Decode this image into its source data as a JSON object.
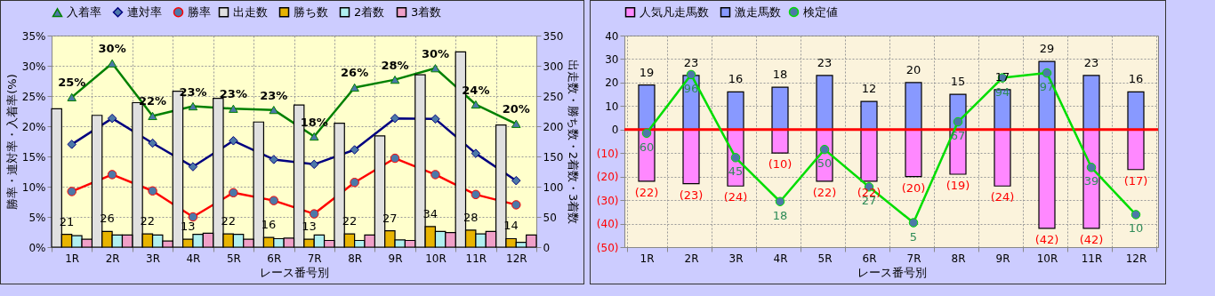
{
  "chart_data": [
    {
      "type": "bar",
      "xlabel": "レース番号別",
      "ylabel": "勝率・連対率・入着率(%)",
      "y2label": "出走数・勝ち数・2着数・3着数",
      "categories": [
        "1R",
        "2R",
        "3R",
        "4R",
        "5R",
        "6R",
        "7R",
        "8R",
        "9R",
        "10R",
        "11R",
        "12R"
      ],
      "series": [
        {
          "name": "出走数",
          "type": "bar",
          "axis": "y2",
          "color": "#e0e0e0",
          "values": [
            229,
            218,
            239,
            258,
            246,
            207,
            235,
            205,
            184,
            285,
            323,
            202
          ]
        },
        {
          "name": "勝ち数",
          "type": "bar",
          "axis": "y2",
          "color": "#e8b400",
          "values": [
            21,
            26,
            22,
            13,
            22,
            16,
            13,
            22,
            27,
            34,
            28,
            14
          ],
          "value_labels": [
            "21",
            "26",
            "22",
            "13",
            "22",
            "16",
            "13",
            "22",
            "27",
            "34",
            "28",
            "14"
          ]
        },
        {
          "name": "2着数",
          "type": "bar",
          "axis": "y2",
          "color": "#b0f0f0",
          "values": [
            19,
            20,
            20,
            21,
            21,
            14,
            20,
            11,
            12,
            26,
            22,
            8
          ]
        },
        {
          "name": "3着数",
          "type": "bar",
          "axis": "y2",
          "color": "#f0a0c8",
          "values": [
            13,
            20,
            10,
            23,
            13,
            15,
            11,
            20,
            11,
            24,
            26,
            20
          ]
        },
        {
          "name": "入着率",
          "type": "line",
          "axis": "y",
          "color": "#008000",
          "marker": "triangle",
          "values": [
            24.8,
            30.4,
            21.7,
            23.3,
            22.9,
            22.7,
            18.3,
            26.4,
            27.7,
            29.6,
            23.6,
            20.4
          ],
          "value_labels": [
            "25%",
            "30%",
            "22%",
            "23%",
            "23%",
            "23%",
            "18%",
            "26%",
            "28%",
            "30%",
            "24%",
            "20%"
          ]
        },
        {
          "name": "連対率",
          "type": "line",
          "axis": "y",
          "color": "#000080",
          "marker": "diamond",
          "values": [
            17.0,
            21.3,
            17.2,
            13.3,
            17.6,
            14.5,
            13.7,
            16.1,
            21.3,
            21.2,
            15.5,
            11.0
          ]
        },
        {
          "name": "勝率",
          "type": "line",
          "axis": "y",
          "color": "#ff0000",
          "marker": "circle",
          "values": [
            9.2,
            12.0,
            9.3,
            5.0,
            9.0,
            7.7,
            5.5,
            10.7,
            14.7,
            12.0,
            8.7,
            7.0
          ]
        }
      ],
      "ylim": [
        0,
        35
      ],
      "yticks": [
        {
          "value": 0,
          "label": "0%"
        },
        {
          "value": 5,
          "label": "5%"
        },
        {
          "value": 10,
          "label": "10%"
        },
        {
          "value": 15,
          "label": "15%"
        },
        {
          "value": 20,
          "label": "20%"
        },
        {
          "value": 25,
          "label": "25%"
        },
        {
          "value": 30,
          "label": "30%"
        },
        {
          "value": 35,
          "label": "35%"
        }
      ],
      "y2lim": [
        0,
        350
      ],
      "y2ticks": [
        0,
        50,
        100,
        150,
        200,
        250,
        300,
        350
      ],
      "grid": true,
      "legend": "top"
    },
    {
      "type": "bar",
      "stacked": true,
      "xlabel": "レース番号別",
      "categories": [
        "1R",
        "2R",
        "3R",
        "4R",
        "5R",
        "6R",
        "7R",
        "8R",
        "9R",
        "10R",
        "11R",
        "12R"
      ],
      "series": [
        {
          "name": "人気凡走馬数",
          "type": "bar",
          "axis": "y",
          "color": "#ff88ff",
          "values": [
            -22,
            -23,
            -24,
            -10,
            -22,
            -22,
            -20,
            -19,
            -24,
            -42,
            -42,
            -17
          ],
          "value_labels": [
            "(22)",
            "(23)",
            "(24)",
            "(10)",
            "(22)",
            "(22)",
            "(20)",
            "(19)",
            "(24)",
            "(42)",
            "(42)",
            "(17)"
          ]
        },
        {
          "name": "激走馬数",
          "type": "bar",
          "axis": "y",
          "color": "#8899ff",
          "values": [
            19,
            23,
            16,
            18,
            23,
            12,
            20,
            15,
            17,
            29,
            23,
            16
          ],
          "value_labels": [
            "19",
            "23",
            "16",
            "18",
            "23",
            "12",
            "20",
            "15",
            "17",
            "29",
            "23",
            "16"
          ]
        },
        {
          "name": "検定値",
          "type": "line",
          "axis": "y2",
          "color": "#00dd00",
          "marker": "circle",
          "values": [
            60,
            96,
            45,
            18,
            50,
            27,
            5,
            67,
            94,
            97,
            39,
            10
          ],
          "value_labels": [
            "60",
            "96",
            "45",
            "18",
            "50",
            "27",
            "5",
            "67",
            "94",
            "97",
            "39",
            "10"
          ]
        }
      ],
      "ylim": [
        -50,
        40
      ],
      "yticks": [
        40,
        30,
        20,
        10,
        0,
        {
          "value": -10,
          "label": "(10)"
        },
        {
          "value": -20,
          "label": "(20)"
        },
        {
          "value": -30,
          "label": "(30)"
        },
        {
          "value": -40,
          "label": "(40)"
        },
        {
          "value": -50,
          "label": "(50)"
        }
      ],
      "y2lim": [
        -10,
        120
      ],
      "ref_lines": [
        {
          "axis": "y",
          "value": 0,
          "color": "#ff0000"
        }
      ],
      "grid": true,
      "legend": "top"
    }
  ]
}
